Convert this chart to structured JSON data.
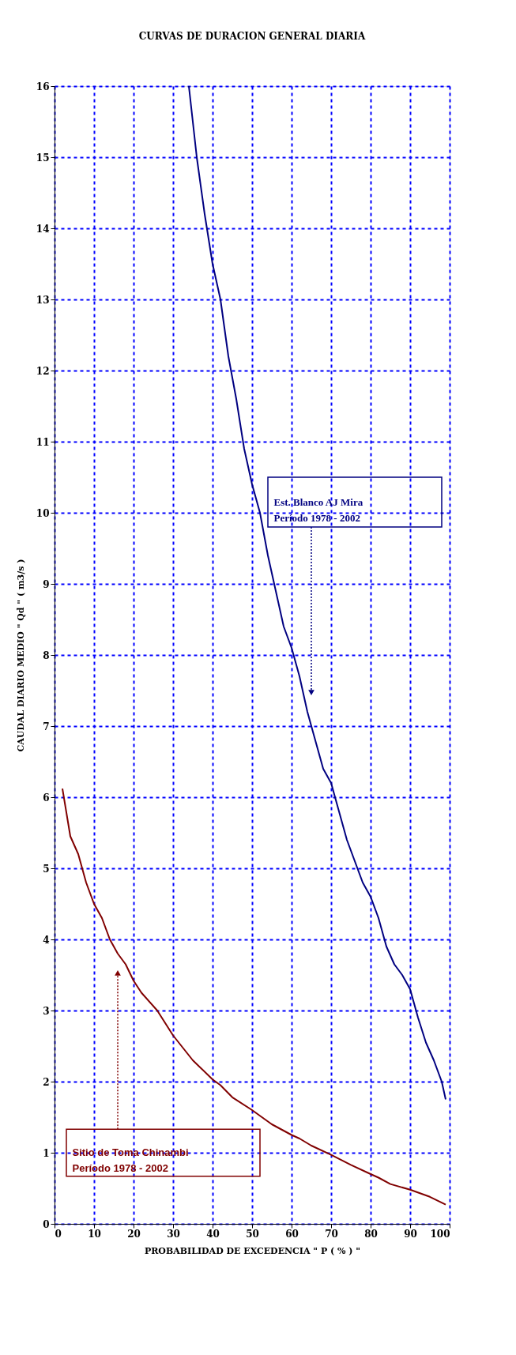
{
  "chart_data": {
    "type": "line",
    "title": "CURVAS DE DURACION GENERAL DIARIA",
    "xlabel": "PROBABILIDAD DE  EXCEDENCIA   \" P  ( % ) \"",
    "ylabel": "CAUDAL  DIARIO MEDIO     \" Qd \"   ( m3/s )",
    "xlim": [
      0,
      100
    ],
    "xticks": [
      0,
      10,
      20,
      30,
      40,
      50,
      60,
      70,
      80,
      90,
      100
    ],
    "ylim": [
      0,
      16
    ],
    "yticks": [
      0,
      1,
      2,
      3,
      4,
      5,
      6,
      7,
      8,
      9,
      10,
      11,
      12,
      13,
      14,
      15,
      16
    ],
    "grid": true,
    "marker": "none",
    "line_style": "solid",
    "series": [
      {
        "color": "#000080",
        "x": [
          34,
          36,
          38,
          40,
          42,
          44,
          46,
          48,
          50,
          52,
          54,
          56,
          58,
          60,
          62,
          64,
          66,
          68,
          70,
          72,
          74,
          76,
          78,
          80,
          82,
          84,
          86,
          88,
          90,
          92,
          94,
          96,
          98,
          99
        ],
        "values": [
          16,
          15,
          14.2,
          13.5,
          13,
          12.2,
          11.6,
          10.9,
          10.4,
          10,
          9.4,
          8.9,
          8.4,
          8.1,
          7.7,
          7.2,
          6.8,
          6.4,
          6.2,
          5.8,
          5.4,
          5.1,
          4.8,
          4.6,
          4.3,
          3.9,
          3.65,
          3.5,
          3.3,
          2.9,
          2.55,
          2.3,
          2.0,
          1.75
        ]
      },
      {
        "color": "#800000",
        "x": [
          2,
          4,
          6,
          8,
          10,
          12,
          14,
          16,
          18,
          20,
          22,
          26,
          30,
          35,
          40,
          42,
          45,
          50,
          52,
          55,
          60,
          62,
          65,
          70,
          75,
          80,
          82,
          85,
          90,
          95,
          99
        ],
        "values": [
          6.12,
          5.45,
          5.2,
          4.8,
          4.5,
          4.3,
          4.0,
          3.8,
          3.65,
          3.42,
          3.25,
          3.0,
          2.65,
          2.3,
          2.03,
          1.95,
          1.78,
          1.6,
          1.52,
          1.4,
          1.25,
          1.2,
          1.1,
          0.97,
          0.83,
          0.7,
          0.65,
          0.56,
          0.48,
          0.38,
          0.27
        ]
      }
    ],
    "annotations": [
      "Est. Blanco AJ Mira\nPeríodo 1978 - 2002",
      "Sitio de Toma Chinambi\nPeríodo    1978 - 2002"
    ]
  }
}
